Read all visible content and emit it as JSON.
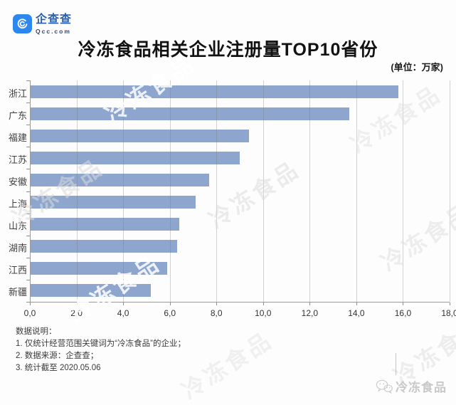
{
  "brand": {
    "name": "企查查",
    "domain": "Qcc.com"
  },
  "title": "冷冻食品相关企业注册量TOP10省份",
  "unit_label": "(单位：万家)",
  "chart_data": {
    "type": "bar",
    "orientation": "horizontal",
    "title": "冷冻食品相关企业注册量TOP10省份",
    "unit": "万家",
    "categories": [
      "浙江",
      "广东",
      "福建",
      "江苏",
      "安徽",
      "上海",
      "山东",
      "湖南",
      "江西",
      "新疆"
    ],
    "values": [
      15.8,
      13.7,
      9.4,
      9.0,
      7.7,
      7.1,
      6.4,
      6.3,
      5.9,
      5.2
    ],
    "xlim": [
      0,
      18
    ],
    "x_tick_step": 2,
    "x_tick_labels": [
      "0,0",
      "2,0",
      "4,0",
      "6,0",
      "8,0",
      "10,0",
      "12,0",
      "14,0",
      "16,0",
      "18,0"
    ],
    "grid": true,
    "legend": "none",
    "bar_color": "#8ea6ce"
  },
  "notes": {
    "heading": "数据说明：",
    "items": [
      "1. 仅统计经营范围关键词为“冷冻食品”的企业；",
      "2. 数据来源：企查查；",
      "3. 统计截至 2020.05.06"
    ]
  },
  "watermark": {
    "text": "冷冻食品"
  },
  "footer_mark": {
    "text": "冷冻食品"
  },
  "colors": {
    "brand_blue": "#2e87ec",
    "bar": "#8ea6ce",
    "footer_gray": "#c9c9c9"
  }
}
